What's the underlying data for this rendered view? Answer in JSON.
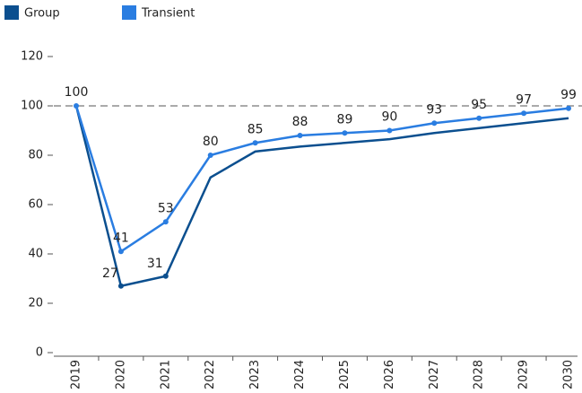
{
  "chart_data": {
    "type": "line",
    "categories": [
      "2019",
      "2020",
      "2021",
      "2022",
      "2023",
      "2024",
      "2025",
      "2026",
      "2027",
      "2028",
      "2029",
      "2030"
    ],
    "series": [
      {
        "name": "Group",
        "color": "#0b4f8f",
        "values": [
          100,
          27,
          31,
          71,
          81.5,
          83.5,
          85,
          86.5,
          89,
          91,
          93,
          95
        ],
        "value_labels": [
          null,
          "27",
          "31",
          null,
          null,
          null,
          null,
          null,
          null,
          null,
          null,
          null
        ]
      },
      {
        "name": "Transient",
        "color": "#2a7de1",
        "values": [
          100,
          41,
          53,
          80,
          85,
          88,
          89,
          90,
          93,
          95,
          97,
          99
        ]
      }
    ],
    "ylim": [
      0,
      120
    ],
    "yticks": [
      0,
      20,
      40,
      60,
      80,
      100,
      120
    ],
    "reference_line": 100,
    "legend": "top-left"
  }
}
